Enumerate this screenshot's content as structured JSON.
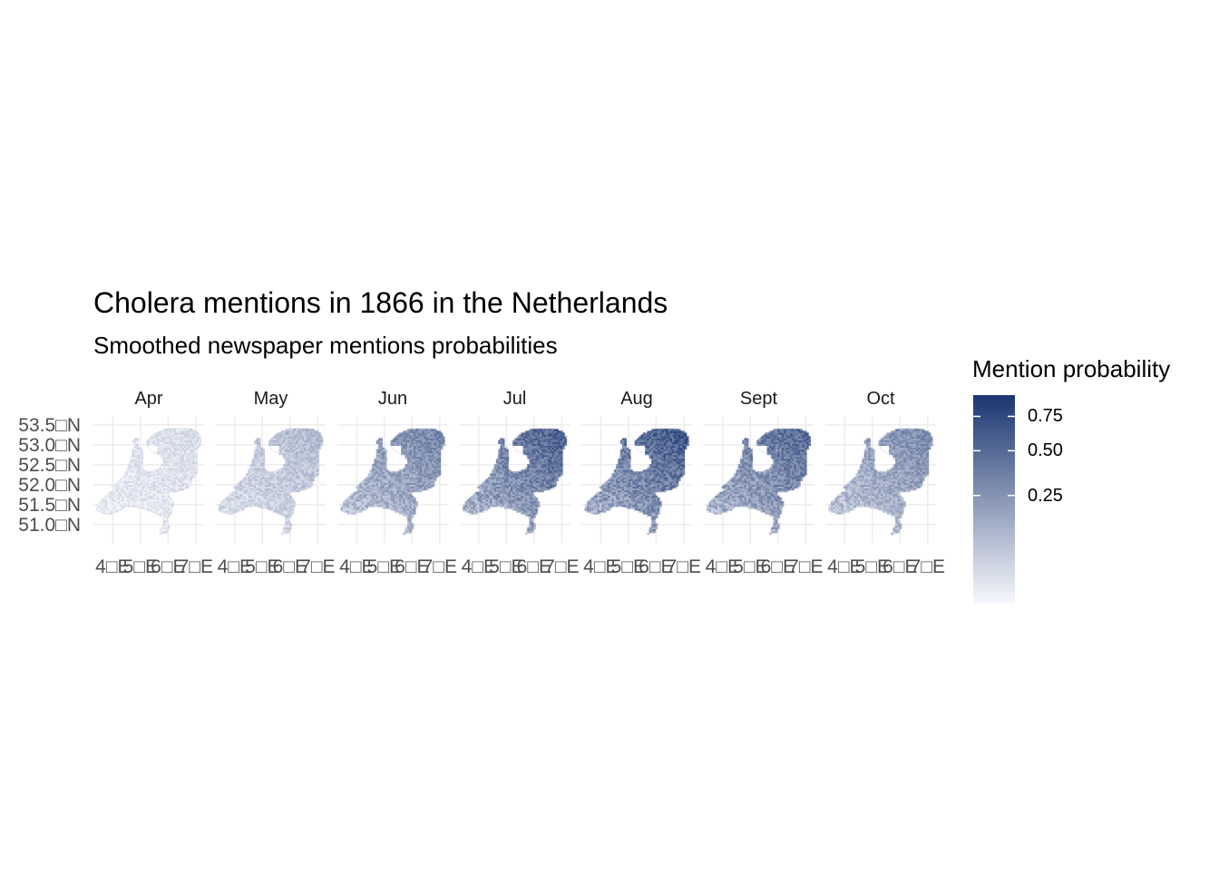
{
  "title": "Cholera mentions in 1866 in the Netherlands",
  "subtitle": "Smoothed newspaper mentions probabilities",
  "legend": {
    "title": "Mention probability",
    "colors": {
      "low": "#f7f8fc",
      "high": "#1b3670"
    },
    "breaks": [
      {
        "label": "0.75",
        "value": 0.75
      },
      {
        "label": "0.50",
        "value": 0.5
      },
      {
        "label": "0.25",
        "value": 0.25
      }
    ],
    "range": [
      0,
      0.93
    ]
  },
  "axes": {
    "y_ticks": [
      "53.5□N",
      "53.0□N",
      "52.5□N",
      "52.0□N",
      "51.5□N",
      "51.0□N"
    ],
    "y_values": [
      53.5,
      53.0,
      52.5,
      52.0,
      51.5,
      51.0
    ],
    "x_ticks": [
      "4□E",
      "5□E",
      "6□E",
      "7□E"
    ],
    "x_values": [
      4,
      5,
      6,
      7
    ],
    "xlim": [
      3.3,
      7.3
    ],
    "ylim": [
      50.7,
      53.7
    ]
  },
  "facets": [
    {
      "label": "Apr",
      "intensity": 0.1,
      "gridcolor": "#ebebeb"
    },
    {
      "label": "May",
      "intensity": 0.22,
      "gridcolor": "#ebebeb"
    },
    {
      "label": "Jun",
      "intensity": 0.42,
      "gridcolor": "#ebebeb"
    },
    {
      "label": "Jul",
      "intensity": 0.55,
      "gridcolor": "#ebebeb"
    },
    {
      "label": "Aug",
      "intensity": 0.58,
      "gridcolor": "#ebebeb"
    },
    {
      "label": "Sept",
      "intensity": 0.52,
      "gridcolor": "#ebebeb"
    },
    {
      "label": "Oct",
      "intensity": 0.4,
      "gridcolor": "#ebebeb"
    }
  ]
}
